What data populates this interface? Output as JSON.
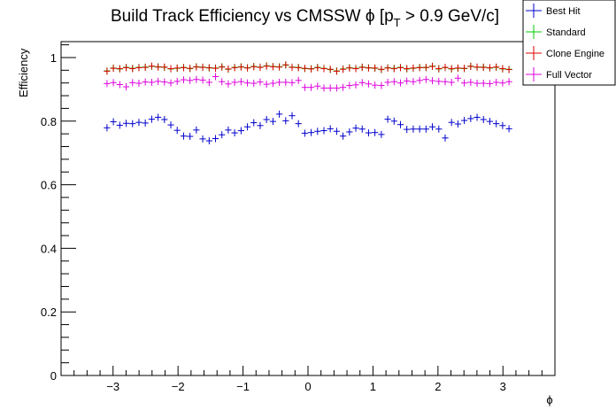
{
  "chart_data": {
    "type": "scatter",
    "title_main": "Build Track Efficiency vs CMSSW ",
    "title_phi": "ϕ",
    "title_rest_a": " [p",
    "title_sub": "T",
    "title_rest_b": " > 0.9 GeV/c]",
    "xlabel": "ϕ",
    "ylabel": "Efficiency",
    "xlim": [
      -3.8,
      3.8
    ],
    "ylim": [
      0,
      1.05
    ],
    "x_ticks": [
      -3,
      -2,
      -1,
      0,
      1,
      2,
      3
    ],
    "x_tick_labels": [
      "−3",
      "−2",
      "−1",
      "0",
      "1",
      "2",
      "3"
    ],
    "y_ticks": [
      0,
      0.2,
      0.4,
      0.6,
      0.8,
      1
    ],
    "y_tick_labels": [
      "0",
      "0.2",
      "0.4",
      "0.6",
      "0.8",
      "1"
    ],
    "grid": false,
    "legend_position": "top-right",
    "bin_width": 0.0982,
    "x": [
      -3.093,
      -2.995,
      -2.897,
      -2.798,
      -2.7,
      -2.602,
      -2.504,
      -2.405,
      -2.307,
      -2.209,
      -2.111,
      -2.013,
      -1.914,
      -1.816,
      -1.718,
      -1.62,
      -1.521,
      -1.423,
      -1.325,
      -1.227,
      -1.129,
      -1.03,
      -0.932,
      -0.834,
      -0.736,
      -0.638,
      -0.539,
      -0.441,
      -0.343,
      -0.245,
      -0.147,
      -0.049,
      0.049,
      0.147,
      0.245,
      0.343,
      0.441,
      0.539,
      0.638,
      0.736,
      0.834,
      0.932,
      1.03,
      1.129,
      1.227,
      1.325,
      1.423,
      1.521,
      1.62,
      1.718,
      1.816,
      1.914,
      2.013,
      2.111,
      2.209,
      2.307,
      2.405,
      2.504,
      2.602,
      2.7,
      2.798,
      2.897,
      2.995,
      3.093
    ],
    "series": [
      {
        "name": "Best Hit",
        "color": "#0000cc",
        "values": [
          0.779,
          0.798,
          0.787,
          0.793,
          0.792,
          0.796,
          0.794,
          0.806,
          0.812,
          0.805,
          0.788,
          0.771,
          0.753,
          0.752,
          0.772,
          0.744,
          0.738,
          0.745,
          0.757,
          0.772,
          0.763,
          0.77,
          0.782,
          0.795,
          0.786,
          0.805,
          0.799,
          0.822,
          0.801,
          0.817,
          0.792,
          0.762,
          0.764,
          0.768,
          0.77,
          0.776,
          0.768,
          0.753,
          0.766,
          0.778,
          0.775,
          0.763,
          0.764,
          0.758,
          0.806,
          0.8,
          0.789,
          0.774,
          0.775,
          0.775,
          0.775,
          0.782,
          0.775,
          0.747,
          0.796,
          0.791,
          0.802,
          0.808,
          0.812,
          0.805,
          0.799,
          0.792,
          0.786,
          0.776
        ]
      },
      {
        "name": "Standard",
        "color": "#00cc00",
        "values": [
          0.958,
          0.967,
          0.964,
          0.969,
          0.966,
          0.969,
          0.97,
          0.972,
          0.971,
          0.969,
          0.964,
          0.966,
          0.969,
          0.965,
          0.971,
          0.97,
          0.967,
          0.967,
          0.971,
          0.963,
          0.969,
          0.971,
          0.968,
          0.972,
          0.97,
          0.974,
          0.972,
          0.971,
          0.976,
          0.97,
          0.969,
          0.965,
          0.965,
          0.969,
          0.966,
          0.962,
          0.958,
          0.964,
          0.968,
          0.966,
          0.97,
          0.968,
          0.966,
          0.962,
          0.968,
          0.966,
          0.969,
          0.964,
          0.966,
          0.969,
          0.968,
          0.973,
          0.964,
          0.968,
          0.964,
          0.966,
          0.965,
          0.973,
          0.969,
          0.97,
          0.967,
          0.969,
          0.964,
          0.963
        ]
      },
      {
        "name": "Clone Engine",
        "color": "#dd0000",
        "values": [
          0.957,
          0.966,
          0.965,
          0.968,
          0.965,
          0.968,
          0.969,
          0.973,
          0.97,
          0.97,
          0.965,
          0.967,
          0.968,
          0.966,
          0.97,
          0.969,
          0.968,
          0.966,
          0.97,
          0.964,
          0.968,
          0.97,
          0.967,
          0.971,
          0.969,
          0.973,
          0.971,
          0.97,
          0.977,
          0.969,
          0.968,
          0.966,
          0.964,
          0.968,
          0.965,
          0.963,
          0.957,
          0.963,
          0.967,
          0.965,
          0.969,
          0.967,
          0.967,
          0.963,
          0.967,
          0.965,
          0.968,
          0.965,
          0.967,
          0.968,
          0.969,
          0.972,
          0.965,
          0.969,
          0.965,
          0.967,
          0.966,
          0.972,
          0.97,
          0.969,
          0.968,
          0.97,
          0.965,
          0.962
        ]
      },
      {
        "name": "Full Vector",
        "color": "#dd00dd",
        "values": [
          0.918,
          0.921,
          0.915,
          0.908,
          0.921,
          0.919,
          0.923,
          0.922,
          0.925,
          0.923,
          0.92,
          0.925,
          0.93,
          0.928,
          0.931,
          0.929,
          0.922,
          0.94,
          0.924,
          0.917,
          0.922,
          0.924,
          0.92,
          0.919,
          0.923,
          0.916,
          0.919,
          0.922,
          0.922,
          0.921,
          0.928,
          0.906,
          0.906,
          0.91,
          0.904,
          0.904,
          0.904,
          0.906,
          0.912,
          0.914,
          0.921,
          0.917,
          0.913,
          0.912,
          0.922,
          0.924,
          0.92,
          0.926,
          0.924,
          0.928,
          0.931,
          0.927,
          0.925,
          0.924,
          0.922,
          0.935,
          0.92,
          0.922,
          0.919,
          0.919,
          0.918,
          0.922,
          0.92,
          0.924
        ]
      }
    ]
  }
}
